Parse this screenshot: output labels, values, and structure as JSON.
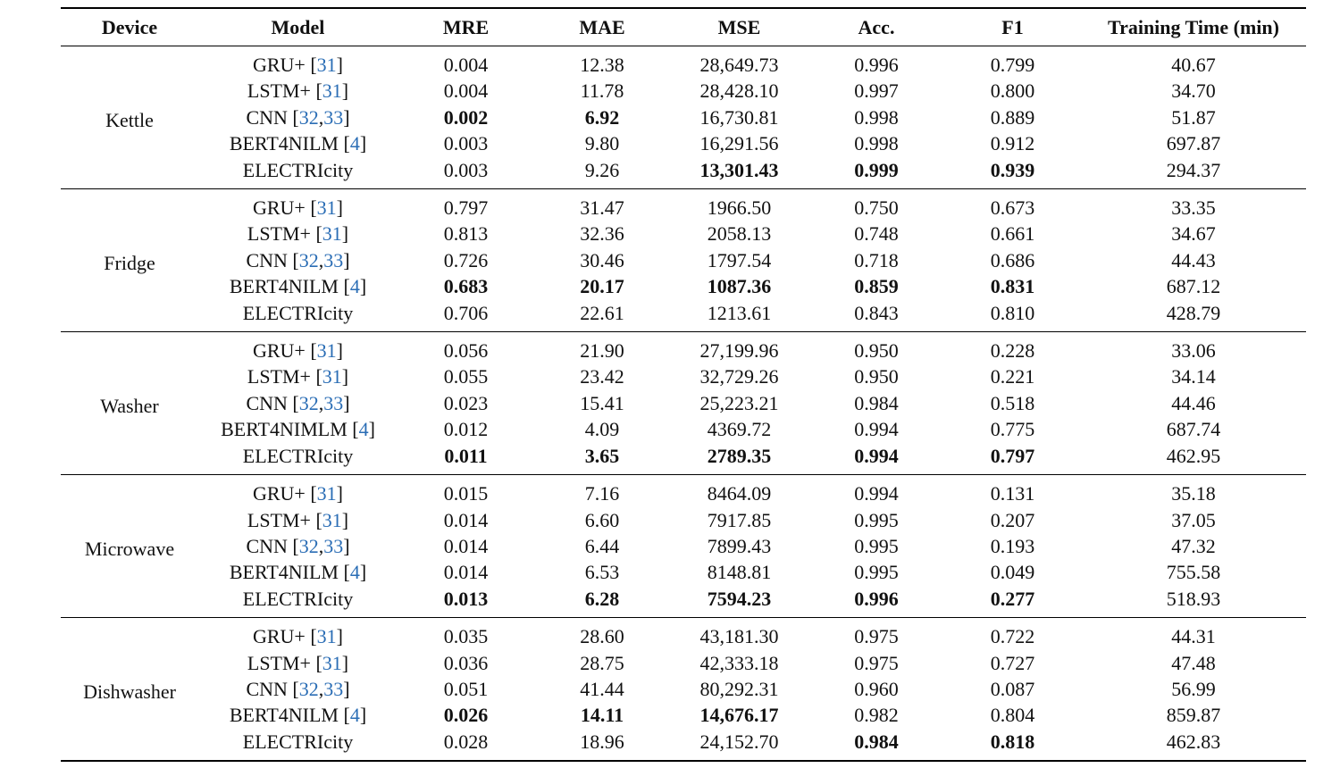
{
  "header": [
    "Device",
    "Model",
    "MRE",
    "MAE",
    "MSE",
    "Acc.",
    "F1",
    "Training Time (min)"
  ],
  "groups": [
    {
      "device": "Kettle",
      "rows": [
        {
          "cells": [
            "GRU+ [31]",
            "0.004",
            "12.38",
            "28,649.73",
            "0.996",
            "0.799",
            "40.67"
          ],
          "bold": []
        },
        {
          "cells": [
            "LSTM+ [31]",
            "0.004",
            "11.78",
            "28,428.10",
            "0.997",
            "0.800",
            "34.70"
          ],
          "bold": []
        },
        {
          "cells": [
            "CNN [32,33]",
            "0.002",
            "6.92",
            "16,730.81",
            "0.998",
            "0.889",
            "51.87"
          ],
          "bold": [
            1,
            2
          ]
        },
        {
          "cells": [
            "BERT4NILM [4]",
            "0.003",
            "9.80",
            "16,291.56",
            "0.998",
            "0.912",
            "697.87"
          ],
          "bold": []
        },
        {
          "cells": [
            "ELECTRIcity",
            "0.003",
            "9.26",
            "13,301.43",
            "0.999",
            "0.939",
            "294.37"
          ],
          "bold": [
            3,
            4,
            5
          ]
        }
      ]
    },
    {
      "device": "Fridge",
      "rows": [
        {
          "cells": [
            "GRU+ [31]",
            "0.797",
            "31.47",
            "1966.50",
            "0.750",
            "0.673",
            "33.35"
          ],
          "bold": []
        },
        {
          "cells": [
            "LSTM+ [31]",
            "0.813",
            "32.36",
            "2058.13",
            "0.748",
            "0.661",
            "34.67"
          ],
          "bold": []
        },
        {
          "cells": [
            "CNN [32,33]",
            "0.726",
            "30.46",
            "1797.54",
            "0.718",
            "0.686",
            "44.43"
          ],
          "bold": []
        },
        {
          "cells": [
            "BERT4NILM [4]",
            "0.683",
            "20.17",
            "1087.36",
            "0.859",
            "0.831",
            "687.12"
          ],
          "bold": [
            1,
            2,
            3,
            4,
            5
          ]
        },
        {
          "cells": [
            "ELECTRIcity",
            "0.706",
            "22.61",
            "1213.61",
            "0.843",
            "0.810",
            "428.79"
          ],
          "bold": []
        }
      ]
    },
    {
      "device": "Washer",
      "rows": [
        {
          "cells": [
            "GRU+ [31]",
            "0.056",
            "21.90",
            "27,199.96",
            "0.950",
            "0.228",
            "33.06"
          ],
          "bold": []
        },
        {
          "cells": [
            "LSTM+ [31]",
            "0.055",
            "23.42",
            "32,729.26",
            "0.950",
            "0.221",
            "34.14"
          ],
          "bold": []
        },
        {
          "cells": [
            "CNN [32,33]",
            "0.023",
            "15.41",
            "25,223.21",
            "0.984",
            "0.518",
            "44.46"
          ],
          "bold": []
        },
        {
          "cells": [
            "BERT4NIMLM [4]",
            "0.012",
            "4.09",
            "4369.72",
            "0.994",
            "0.775",
            "687.74"
          ],
          "bold": []
        },
        {
          "cells": [
            "ELECTRIcity",
            "0.011",
            "3.65",
            "2789.35",
            "0.994",
            "0.797",
            "462.95"
          ],
          "bold": [
            1,
            2,
            3,
            4,
            5
          ]
        }
      ]
    },
    {
      "device": "Microwave",
      "rows": [
        {
          "cells": [
            "GRU+ [31]",
            "0.015",
            "7.16",
            "8464.09",
            "0.994",
            "0.131",
            "35.18"
          ],
          "bold": []
        },
        {
          "cells": [
            "LSTM+ [31]",
            "0.014",
            "6.60",
            "7917.85",
            "0.995",
            "0.207",
            "37.05"
          ],
          "bold": []
        },
        {
          "cells": [
            "CNN [32,33]",
            "0.014",
            "6.44",
            "7899.43",
            "0.995",
            "0.193",
            "47.32"
          ],
          "bold": []
        },
        {
          "cells": [
            "BERT4NILM [4]",
            "0.014",
            "6.53",
            "8148.81",
            "0.995",
            "0.049",
            "755.58"
          ],
          "bold": []
        },
        {
          "cells": [
            "ELECTRIcity",
            "0.013",
            "6.28",
            "7594.23",
            "0.996",
            "0.277",
            "518.93"
          ],
          "bold": [
            1,
            2,
            3,
            4,
            5
          ]
        }
      ]
    },
    {
      "device": "Dishwasher",
      "rows": [
        {
          "cells": [
            "GRU+ [31]",
            "0.035",
            "28.60",
            "43,181.30",
            "0.975",
            "0.722",
            "44.31"
          ],
          "bold": []
        },
        {
          "cells": [
            "LSTM+ [31]",
            "0.036",
            "28.75",
            "42,333.18",
            "0.975",
            "0.727",
            "47.48"
          ],
          "bold": []
        },
        {
          "cells": [
            "CNN [32,33]",
            "0.051",
            "41.44",
            "80,292.31",
            "0.960",
            "0.087",
            "56.99"
          ],
          "bold": []
        },
        {
          "cells": [
            "BERT4NILM [4]",
            "0.026",
            "14.11",
            "14,676.17",
            "0.982",
            "0.804",
            "859.87"
          ],
          "bold": [
            1,
            2,
            3
          ]
        },
        {
          "cells": [
            "ELECTRIcity",
            "0.028",
            "18.96",
            "24,152.70",
            "0.984",
            "0.818",
            "462.83"
          ],
          "bold": [
            4,
            5
          ]
        }
      ]
    }
  ]
}
